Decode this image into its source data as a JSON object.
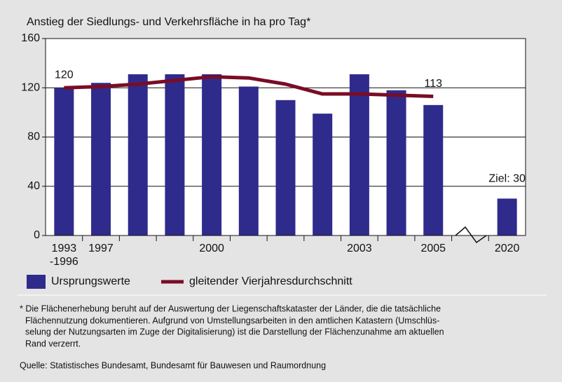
{
  "chart_data": {
    "type": "bar",
    "title": "Anstieg der Siedlungs- und Verkehrsfläche in ha pro Tag*",
    "categories": [
      "1993 -1996",
      "1997",
      null,
      null,
      "2000",
      null,
      null,
      null,
      "2003",
      null,
      "2005",
      null,
      "2020"
    ],
    "series": [
      {
        "name": "Ursprungswerte",
        "type": "bar",
        "color": "#2f2b8c",
        "values": [
          120,
          124,
          131,
          131,
          131,
          121,
          110,
          99,
          131,
          118,
          106,
          null,
          30
        ],
        "value_labels": [
          null,
          null,
          null,
          null,
          null,
          null,
          null,
          null,
          null,
          null,
          null,
          null,
          "Ziel: 30"
        ]
      },
      {
        "name": "gleitender Vierjahresdurchschnitt",
        "type": "line",
        "color": "#7a0c26",
        "values": [
          120,
          121,
          123,
          126,
          129,
          128,
          123,
          115,
          115,
          114,
          113,
          null,
          null
        ],
        "value_labels": [
          "120",
          null,
          null,
          null,
          null,
          null,
          null,
          null,
          null,
          null,
          "113",
          null,
          null
        ]
      }
    ],
    "ylim": [
      0,
      160
    ],
    "yticks": [
      0,
      40,
      80,
      120,
      160
    ],
    "grid": true
  },
  "notes": {
    "footnote": [
      "* Die Flächenerhebung beruht auf der Auswertung der Liegenschaftskataster der Länder, die die tatsächliche",
      "Flächennutzung dokumentieren. Aufgrund von Umstellungsarbeiten in den amtlichen Katastern (Umschlüs-",
      "selung der Nutzungsarten im Zuge der Digitalisierung) ist die Darstellung der Flächenzunahme am aktuellen",
      "Rand verzerrt."
    ],
    "source": "Quelle: Statistisches Bundesamt, Bundesamt für Bauwesen und Raumordnung"
  }
}
